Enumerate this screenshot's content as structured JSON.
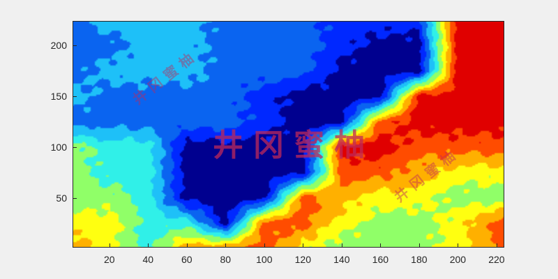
{
  "chart_data": {
    "type": "heatmap",
    "style": "filled contour",
    "colormap": "jet",
    "title": "",
    "xlabel": "",
    "ylabel": "",
    "xlim": [
      1,
      224
    ],
    "ylim": [
      1,
      224
    ],
    "xticks": [
      20,
      40,
      60,
      80,
      100,
      120,
      140,
      160,
      180,
      200,
      220
    ],
    "yticks": [
      50,
      100,
      150,
      200
    ],
    "grid": false,
    "level_colors": [
      "#00008f",
      "#0028ff",
      "#0a64f0",
      "#1ec0f8",
      "#30f0e8",
      "#90ff68",
      "#ffff10",
      "#ffb000",
      "#ff4c00",
      "#e00000"
    ],
    "grid_x": [
      1,
      20,
      40,
      60,
      80,
      100,
      120,
      140,
      160,
      180,
      200,
      224
    ],
    "grid_y": [
      224,
      200,
      175,
      150,
      125,
      100,
      75,
      50,
      25,
      1
    ],
    "approx_level_index": [
      [
        2,
        3,
        3,
        3,
        2,
        2,
        2,
        1,
        1,
        1,
        9,
        9
      ],
      [
        2,
        2,
        3,
        3,
        2,
        2,
        2,
        1,
        0,
        0,
        9,
        9
      ],
      [
        2,
        3,
        3,
        3,
        2,
        2,
        2,
        0,
        0,
        0,
        9,
        9
      ],
      [
        3,
        2,
        2,
        2,
        2,
        1,
        0,
        0,
        0,
        9,
        9,
        9
      ],
      [
        2,
        2,
        2,
        2,
        2,
        1,
        0,
        0,
        8,
        9,
        9,
        9
      ],
      [
        5,
        4,
        4,
        0,
        0,
        0,
        0,
        9,
        9,
        8,
        8,
        8
      ],
      [
        5,
        4,
        4,
        0,
        0,
        0,
        0,
        8,
        8,
        7,
        6,
        6
      ],
      [
        5,
        5,
        4,
        0,
        0,
        0,
        8,
        7,
        6,
        6,
        5,
        5
      ],
      [
        6,
        6,
        4,
        4,
        0,
        8,
        8,
        6,
        5,
        5,
        6,
        8
      ],
      [
        7,
        6,
        4,
        7,
        7,
        8,
        6,
        5,
        5,
        5,
        6,
        8
      ]
    ]
  },
  "watermark": {
    "text": "井冈蜜柚"
  }
}
